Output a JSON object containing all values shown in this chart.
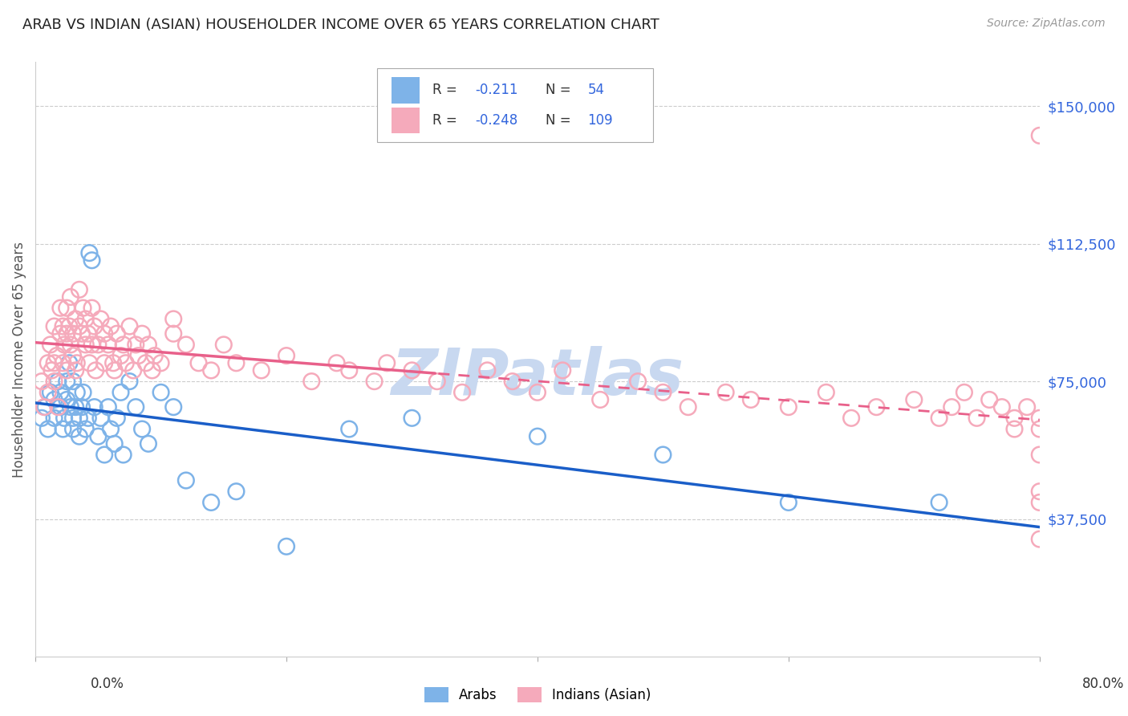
{
  "title": "ARAB VS INDIAN (ASIAN) HOUSEHOLDER INCOME OVER 65 YEARS CORRELATION CHART",
  "source": "Source: ZipAtlas.com",
  "ylabel": "Householder Income Over 65 years",
  "ytick_labels": [
    "$37,500",
    "$75,000",
    "$112,500",
    "$150,000"
  ],
  "ytick_values": [
    37500,
    75000,
    112500,
    150000
  ],
  "ymin": 0,
  "ymax": 162000,
  "xmin": 0.0,
  "xmax": 0.8,
  "legend_arab_R": "-0.211",
  "legend_arab_N": "54",
  "legend_indian_R": "-0.248",
  "legend_indian_N": "109",
  "arab_color": "#7EB3E8",
  "indian_color": "#F5AABB",
  "arab_line_color": "#1A5EC8",
  "indian_line_color": "#E8608A",
  "watermark": "ZIPatlas",
  "watermark_color": "#C8D8F0",
  "arab_x": [
    0.005,
    0.008,
    0.01,
    0.012,
    0.015,
    0.015,
    0.018,
    0.02,
    0.02,
    0.022,
    0.023,
    0.025,
    0.025,
    0.027,
    0.028,
    0.03,
    0.03,
    0.03,
    0.032,
    0.033,
    0.035,
    0.035,
    0.037,
    0.038,
    0.04,
    0.042,
    0.043,
    0.045,
    0.047,
    0.05,
    0.052,
    0.055,
    0.058,
    0.06,
    0.063,
    0.065,
    0.068,
    0.07,
    0.075,
    0.08,
    0.085,
    0.09,
    0.1,
    0.11,
    0.12,
    0.14,
    0.16,
    0.2,
    0.25,
    0.3,
    0.4,
    0.5,
    0.6,
    0.72
  ],
  "arab_y": [
    65000,
    68000,
    62000,
    72000,
    70000,
    65000,
    75000,
    68000,
    72000,
    62000,
    65000,
    70000,
    75000,
    80000,
    68000,
    65000,
    62000,
    75000,
    68000,
    72000,
    60000,
    65000,
    68000,
    72000,
    62000,
    65000,
    110000,
    108000,
    68000,
    60000,
    65000,
    55000,
    68000,
    62000,
    58000,
    65000,
    72000,
    55000,
    75000,
    68000,
    62000,
    58000,
    72000,
    68000,
    48000,
    42000,
    45000,
    30000,
    62000,
    65000,
    60000,
    55000,
    42000,
    42000
  ],
  "indian_x": [
    0.005,
    0.007,
    0.01,
    0.01,
    0.012,
    0.013,
    0.015,
    0.015,
    0.015,
    0.017,
    0.018,
    0.02,
    0.02,
    0.022,
    0.022,
    0.023,
    0.025,
    0.025,
    0.025,
    0.027,
    0.028,
    0.028,
    0.03,
    0.03,
    0.032,
    0.032,
    0.033,
    0.035,
    0.035,
    0.037,
    0.038,
    0.04,
    0.04,
    0.042,
    0.043,
    0.045,
    0.045,
    0.047,
    0.048,
    0.05,
    0.052,
    0.055,
    0.055,
    0.058,
    0.06,
    0.062,
    0.063,
    0.065,
    0.068,
    0.07,
    0.072,
    0.075,
    0.078,
    0.08,
    0.082,
    0.085,
    0.088,
    0.09,
    0.093,
    0.095,
    0.1,
    0.11,
    0.11,
    0.12,
    0.13,
    0.14,
    0.15,
    0.16,
    0.18,
    0.2,
    0.22,
    0.24,
    0.25,
    0.27,
    0.28,
    0.3,
    0.32,
    0.34,
    0.36,
    0.38,
    0.4,
    0.42,
    0.45,
    0.48,
    0.5,
    0.52,
    0.55,
    0.57,
    0.6,
    0.63,
    0.65,
    0.67,
    0.7,
    0.72,
    0.73,
    0.74,
    0.75,
    0.76,
    0.77,
    0.78,
    0.78,
    0.79,
    0.8,
    0.8,
    0.8,
    0.8,
    0.8,
    0.8,
    0.8
  ],
  "indian_y": [
    75000,
    68000,
    80000,
    72000,
    85000,
    78000,
    90000,
    80000,
    75000,
    82000,
    68000,
    88000,
    95000,
    80000,
    90000,
    85000,
    88000,
    95000,
    78000,
    90000,
    85000,
    98000,
    82000,
    88000,
    78000,
    92000,
    80000,
    90000,
    100000,
    88000,
    95000,
    85000,
    92000,
    88000,
    80000,
    95000,
    85000,
    90000,
    78000,
    85000,
    92000,
    88000,
    80000,
    85000,
    90000,
    80000,
    78000,
    88000,
    82000,
    85000,
    80000,
    90000,
    78000,
    85000,
    82000,
    88000,
    80000,
    85000,
    78000,
    82000,
    80000,
    88000,
    92000,
    85000,
    80000,
    78000,
    85000,
    80000,
    78000,
    82000,
    75000,
    80000,
    78000,
    75000,
    80000,
    78000,
    75000,
    72000,
    78000,
    75000,
    72000,
    78000,
    70000,
    75000,
    72000,
    68000,
    72000,
    70000,
    68000,
    72000,
    65000,
    68000,
    70000,
    65000,
    68000,
    72000,
    65000,
    70000,
    68000,
    65000,
    62000,
    68000,
    45000,
    142000,
    65000,
    62000,
    55000,
    42000,
    32000
  ]
}
